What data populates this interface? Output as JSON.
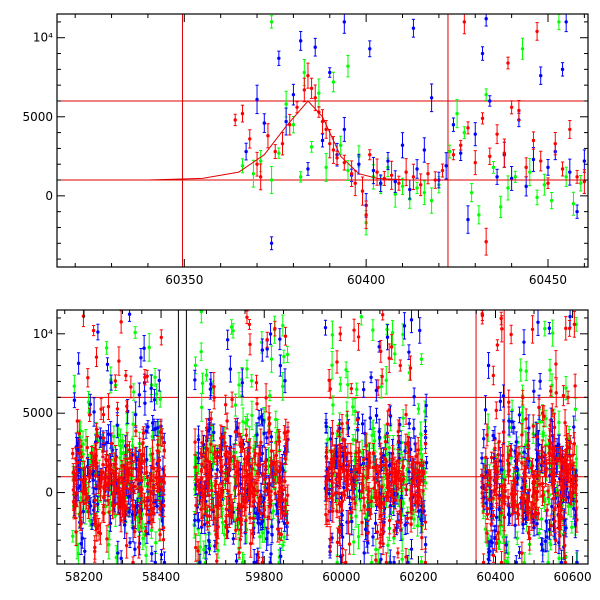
{
  "chart_data": [
    {
      "type": "scatter",
      "title": "",
      "xlabel": "",
      "ylabel": "",
      "xlim": [
        60315,
        60461
      ],
      "ylim": [
        -4500,
        11500
      ],
      "x_ticks": [
        60350,
        60400,
        60450
      ],
      "y_ticks": [
        0,
        5000,
        10000
      ],
      "y_tick_labels": [
        "0",
        "5000",
        "10⁴"
      ],
      "grid": false,
      "error_bars": true,
      "hlines": [
        1000,
        6000
      ],
      "vlines": [
        60349.5,
        60422.5
      ],
      "model_curve": [
        [
          60340,
          1000
        ],
        [
          60355,
          1100
        ],
        [
          60365,
          1500
        ],
        [
          60372,
          2600
        ],
        [
          60378,
          4400
        ],
        [
          60384,
          6000
        ],
        [
          60388,
          5000
        ],
        [
          60393,
          2500
        ],
        [
          60398,
          1400
        ],
        [
          60403,
          1100
        ],
        [
          60412,
          1000
        ],
        [
          60461,
          1000
        ]
      ],
      "series": [
        {
          "color": "#ff0000",
          "points": [
            [
              60364,
              4800
            ],
            [
              60366,
              5200
            ],
            [
              60368,
              3600
            ],
            [
              60370,
              2000
            ],
            [
              60371,
              1200
            ],
            [
              60373,
              3800
            ],
            [
              60375,
              2800
            ],
            [
              60377,
              3300
            ],
            [
              60379,
              4500
            ],
            [
              60381,
              5600
            ],
            [
              60383,
              6700
            ],
            [
              60384,
              7600
            ],
            [
              60385,
              6800
            ],
            [
              60386,
              6200
            ],
            [
              60387,
              5300
            ],
            [
              60388,
              4700
            ],
            [
              60389,
              4200
            ],
            [
              60390,
              3300
            ],
            [
              60391,
              2900
            ],
            [
              60392,
              2400
            ],
            [
              60394,
              2100
            ],
            [
              60396,
              1400
            ],
            [
              60397,
              800
            ],
            [
              60399,
              300
            ],
            [
              60400,
              -1200
            ],
            [
              60401,
              2600
            ],
            [
              60403,
              1500
            ],
            [
              60405,
              1100
            ],
            [
              60407,
              1300
            ],
            [
              60409,
              800
            ],
            [
              60411,
              1500
            ],
            [
              60413,
              1200
            ],
            [
              60415,
              700
            ],
            [
              60417,
              1400
            ],
            [
              60419,
              1000
            ],
            [
              60421,
              1600
            ],
            [
              60424,
              2600
            ],
            [
              60426,
              3200
            ],
            [
              60428,
              4300
            ],
            [
              60430,
              2100
            ],
            [
              60432,
              4900
            ],
            [
              60434,
              2500
            ],
            [
              60436,
              3900
            ],
            [
              60438,
              2700
            ],
            [
              60440,
              5600
            ],
            [
              60442,
              5400
            ],
            [
              60444,
              1800
            ],
            [
              60446,
              3500
            ],
            [
              60448,
              2200
            ],
            [
              60450,
              800
            ],
            [
              60452,
              3300
            ],
            [
              60454,
              1700
            ],
            [
              60456,
              4200
            ],
            [
              60458,
              1200
            ],
            [
              60460,
              900
            ],
            [
              60427,
              11000
            ],
            [
              60447,
              10400
            ],
            [
              60439,
              8400
            ],
            [
              60433,
              -2900
            ]
          ]
        },
        {
          "color": "#00ff00",
          "points": [
            [
              60366,
              1900
            ],
            [
              60369,
              1400
            ],
            [
              60371,
              2200
            ],
            [
              60374,
              1000
            ],
            [
              60376,
              2700
            ],
            [
              60378,
              5800
            ],
            [
              60380,
              4500
            ],
            [
              60382,
              1200
            ],
            [
              60385,
              3100
            ],
            [
              60387,
              6500
            ],
            [
              60389,
              1800
            ],
            [
              60391,
              7200
            ],
            [
              60393,
              3200
            ],
            [
              60395,
              1600
            ],
            [
              60398,
              2500
            ],
            [
              60400,
              -1700
            ],
            [
              60402,
              1200
            ],
            [
              60404,
              700
            ],
            [
              60406,
              1800
            ],
            [
              60408,
              100
            ],
            [
              60410,
              600
            ],
            [
              60412,
              -200
            ],
            [
              60414,
              500
            ],
            [
              60416,
              200
            ],
            [
              60418,
              -300
            ],
            [
              60420,
              700
            ],
            [
              60423,
              2800
            ],
            [
              60425,
              5200
            ],
            [
              60427,
              4000
            ],
            [
              60429,
              200
            ],
            [
              60431,
              -1200
            ],
            [
              60433,
              6400
            ],
            [
              60435,
              1800
            ],
            [
              60437,
              -700
            ],
            [
              60439,
              500
            ],
            [
              60441,
              1200
            ],
            [
              60443,
              9300
            ],
            [
              60445,
              1500
            ],
            [
              60447,
              -100
            ],
            [
              60449,
              700
            ],
            [
              60451,
              -300
            ],
            [
              60453,
              11000
            ],
            [
              60455,
              1200
            ],
            [
              60457,
              -500
            ],
            [
              60459,
              800
            ],
            [
              60374,
              11000
            ],
            [
              60383,
              7800
            ],
            [
              60395,
              8200
            ]
          ]
        },
        {
          "color": "#0000ff",
          "points": [
            [
              60367,
              2800
            ],
            [
              60370,
              6100
            ],
            [
              60372,
              4600
            ],
            [
              60374,
              -3000
            ],
            [
              60376,
              8700
            ],
            [
              60378,
              4700
            ],
            [
              60380,
              6400
            ],
            [
              60382,
              9800
            ],
            [
              60384,
              1700
            ],
            [
              60386,
              9400
            ],
            [
              60388,
              3500
            ],
            [
              60390,
              7800
            ],
            [
              60392,
              2600
            ],
            [
              60394,
              4200
            ],
            [
              60396,
              1300
            ],
            [
              60398,
              2000
            ],
            [
              60400,
              -600
            ],
            [
              60402,
              1600
            ],
            [
              60404,
              800
            ],
            [
              60406,
              2200
            ],
            [
              60408,
              900
            ],
            [
              60410,
              3200
            ],
            [
              60412,
              400
            ],
            [
              60414,
              1700
            ],
            [
              60416,
              2900
            ],
            [
              60418,
              6200
            ],
            [
              60420,
              1000
            ],
            [
              60422,
              1900
            ],
            [
              60424,
              4500
            ],
            [
              60426,
              2700
            ],
            [
              60428,
              -1500
            ],
            [
              60430,
              3900
            ],
            [
              60432,
              9000
            ],
            [
              60434,
              6000
            ],
            [
              60436,
              1200
            ],
            [
              60438,
              2600
            ],
            [
              60440,
              1100
            ],
            [
              60442,
              4800
            ],
            [
              60444,
              600
            ],
            [
              60446,
              2300
            ],
            [
              60448,
              7600
            ],
            [
              60450,
              1800
            ],
            [
              60452,
              2800
            ],
            [
              60454,
              8000
            ],
            [
              60456,
              1500
            ],
            [
              60458,
              -1000
            ],
            [
              60460,
              2200
            ],
            [
              60394,
              11000
            ],
            [
              60413,
              10600
            ],
            [
              60433,
              11200
            ],
            [
              60455,
              11000
            ],
            [
              60401,
              9300
            ]
          ]
        }
      ]
    },
    {
      "type": "scatter",
      "title": "",
      "xlabel": "",
      "ylabel": "",
      "xlim": [
        58130,
        60640
      ],
      "axis_break": {
        "from": 58445,
        "to": 59598
      },
      "ylim": [
        -4500,
        11500
      ],
      "x_ticks": [
        58200,
        58400,
        59800,
        60000,
        60200,
        60400,
        60600
      ],
      "y_ticks": [
        0,
        5000,
        10000
      ],
      "y_tick_labels": [
        "0",
        "5000",
        "10⁴"
      ],
      "grid": false,
      "error_bars": true,
      "hlines": [
        1000,
        6000
      ],
      "vlines": [
        60349.5,
        60422.5
      ],
      "seasons": [
        {
          "start": 58170,
          "end": 58410,
          "dense_sigma": 1900,
          "peak_high": 11500
        },
        {
          "start": 59618,
          "end": 59862,
          "dense_sigma": 2300,
          "peak_high": 11500
        },
        {
          "start": 59958,
          "end": 60222,
          "dense_sigma": 2200,
          "peak_high": 11500
        },
        {
          "start": 60364,
          "end": 60612,
          "dense_sigma": 2300,
          "peak_high": 11500
        }
      ],
      "series": [
        {
          "color": "#00ff00",
          "role": "back"
        },
        {
          "color": "#0000ff",
          "role": "middle"
        },
        {
          "color": "#ff0000",
          "role": "front"
        }
      ]
    }
  ]
}
